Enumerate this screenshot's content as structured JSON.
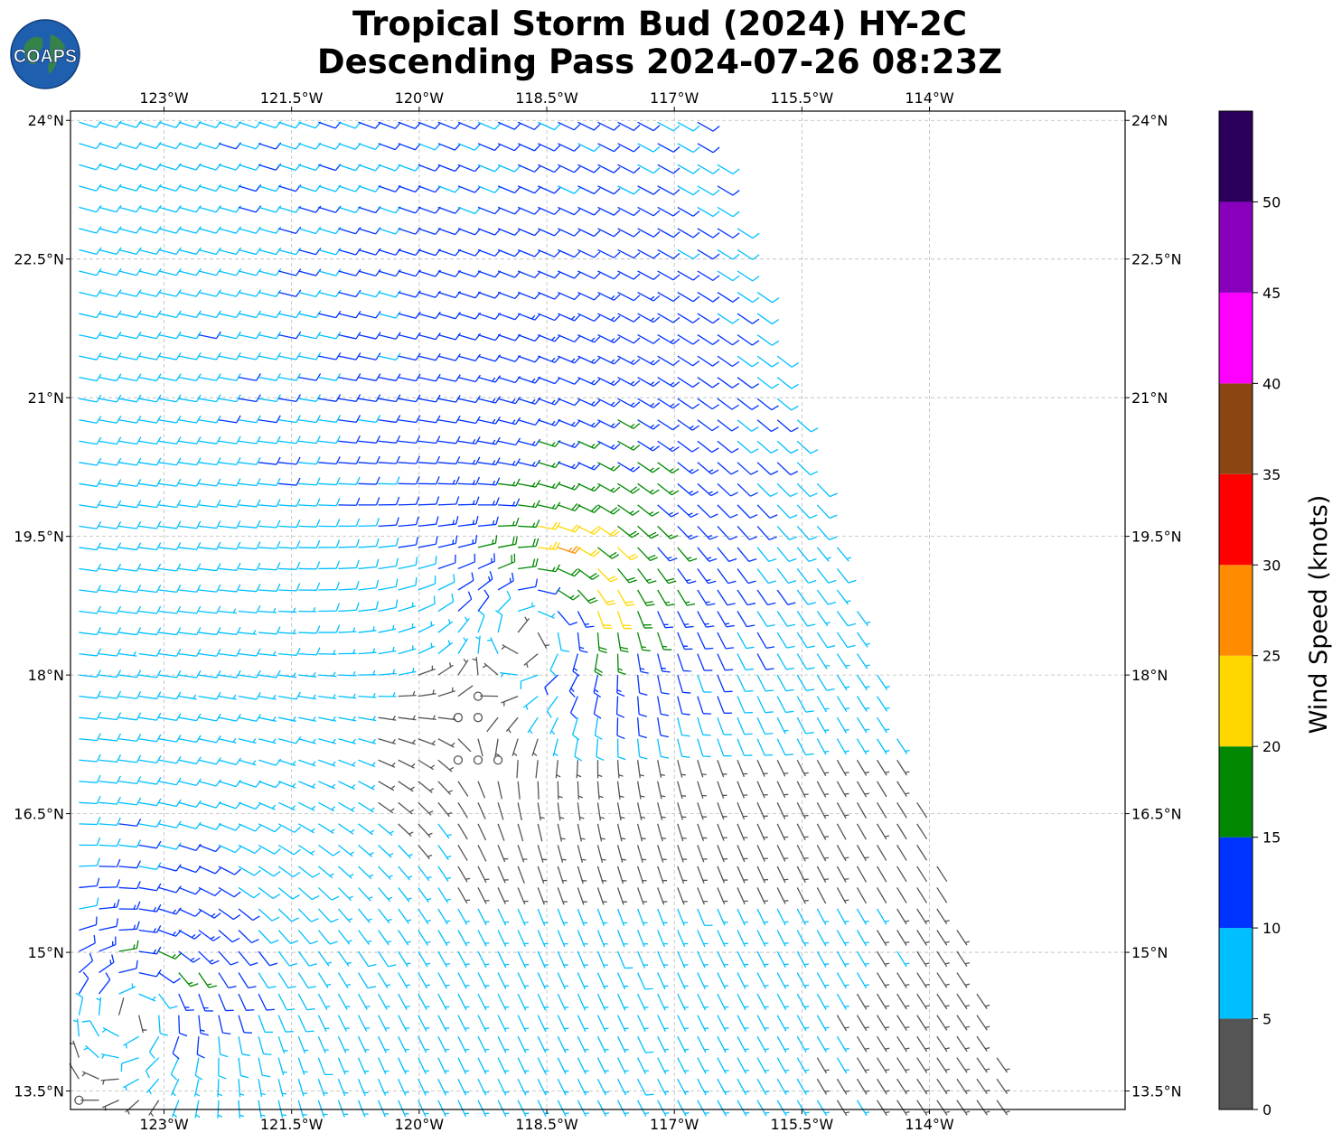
{
  "title": {
    "line1": "Tropical Storm Bud (2024) HY-2C",
    "line2": "Descending Pass 2024-07-26 08:23Z"
  },
  "logo": {
    "text": "COAPS",
    "icon": "globe-logo-icon"
  },
  "map": {
    "lon_range": [
      -124.1,
      -111.7
    ],
    "lat_range": [
      13.3,
      24.1
    ],
    "lon_ticks": [
      -123,
      -121.5,
      -120,
      -118.5,
      -117,
      -115.5,
      -114
    ],
    "lon_labels": [
      "123°W",
      "121.5°W",
      "120°W",
      "118.5°W",
      "117°W",
      "115.5°W",
      "114°W"
    ],
    "lat_ticks": [
      24,
      22.5,
      21,
      19.5,
      18,
      16.5,
      15,
      13.5
    ],
    "lat_labels": [
      "24°N",
      "22.5°N",
      "21°N",
      "19.5°N",
      "18°N",
      "16.5°N",
      "15°N",
      "13.5°N"
    ],
    "gridlines": true,
    "storm_centers": [
      {
        "lon": -118.5,
        "lat": 18.7,
        "max_knots": 22
      },
      {
        "lon": -123.3,
        "lat": 14.5,
        "max_knots": 18
      }
    ],
    "swath_right_edge": [
      [
        -116.6,
        24.1
      ],
      [
        -113.0,
        13.4
      ]
    ]
  },
  "colorbar": {
    "label": "Wind Speed (knots)",
    "bounds": [
      0,
      5,
      10,
      15,
      20,
      25,
      30,
      35,
      40,
      45,
      50,
      55
    ],
    "tick_values": [
      0,
      5,
      10,
      15,
      20,
      25,
      30,
      35,
      40,
      45,
      50
    ],
    "tick_labels": [
      "0",
      "5",
      "10",
      "15",
      "20",
      "25",
      "30",
      "35",
      "40",
      "45",
      "50"
    ],
    "colors": [
      "#555555",
      "#00bfff",
      "#0033ff",
      "#008800",
      "#ffd700",
      "#ff8c00",
      "#ff0000",
      "#8b4513",
      "#ff00ff",
      "#8800bb",
      "#2a005a"
    ]
  }
}
